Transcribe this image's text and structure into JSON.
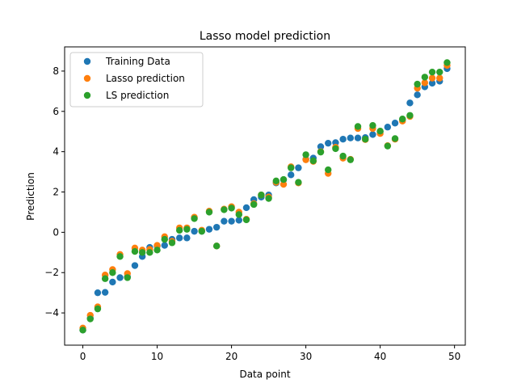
{
  "chart_data": {
    "type": "scatter",
    "title": "Lasso model prediction",
    "xlabel": "Data point",
    "ylabel": "Prediction",
    "xlim": [
      -2.45,
      51.45
    ],
    "ylim": [
      -5.6,
      9.2
    ],
    "xticks": [
      0,
      10,
      20,
      30,
      40,
      50
    ],
    "yticks": [
      -4,
      -2,
      0,
      2,
      4,
      6,
      8
    ],
    "xticklabels": [
      "0",
      "10",
      "20",
      "30",
      "40",
      "50"
    ],
    "yticklabels": [
      "−4",
      "−2",
      "0",
      "2",
      "4",
      "6",
      "8"
    ],
    "grid": false,
    "legend_position": "top-left",
    "x": [
      0,
      1,
      2,
      3,
      4,
      5,
      6,
      7,
      8,
      9,
      10,
      11,
      12,
      13,
      14,
      15,
      16,
      17,
      18,
      19,
      20,
      21,
      22,
      23,
      24,
      25,
      26,
      27,
      28,
      29,
      30,
      31,
      32,
      33,
      34,
      35,
      36,
      37,
      38,
      39,
      40,
      41,
      42,
      43,
      44,
      45,
      46,
      47,
      48,
      49
    ],
    "series": [
      {
        "name": "Training Data",
        "color": "#1f77b4",
        "values": [
          -4.85,
          -4.25,
          -3.0,
          -2.98,
          -2.47,
          -2.25,
          -2.2,
          -1.65,
          -1.2,
          -0.75,
          -0.68,
          -0.65,
          -0.35,
          -0.28,
          -0.28,
          0.05,
          0.05,
          0.15,
          0.25,
          0.55,
          0.55,
          0.6,
          1.22,
          1.62,
          1.75,
          1.85,
          2.45,
          2.6,
          2.85,
          3.2,
          3.62,
          3.68,
          4.25,
          4.42,
          4.45,
          4.62,
          4.68,
          4.68,
          4.7,
          4.85,
          5.0,
          5.22,
          5.42,
          5.6,
          6.42,
          6.82,
          7.22,
          7.4,
          7.5,
          8.12
        ]
      },
      {
        "name": "Lasso prediction",
        "color": "#ff7f0e",
        "values": [
          -4.75,
          -4.12,
          -3.7,
          -2.12,
          -1.85,
          -1.1,
          -2.05,
          -0.78,
          -0.88,
          -0.85,
          -0.65,
          -0.22,
          -0.45,
          0.22,
          0.22,
          0.75,
          0.1,
          1.05,
          -0.68,
          1.15,
          1.27,
          1.0,
          0.65,
          1.42,
          1.85,
          1.75,
          2.48,
          2.38,
          3.25,
          2.45,
          3.6,
          3.52,
          4.0,
          2.92,
          4.22,
          3.68,
          3.62,
          5.15,
          4.6,
          5.15,
          4.9,
          4.3,
          4.62,
          5.52,
          5.75,
          7.15,
          7.42,
          7.65,
          7.65,
          8.28
        ]
      },
      {
        "name": "LS prediction",
        "color": "#2ca02c",
        "values": [
          -4.85,
          -4.3,
          -3.8,
          -2.3,
          -2.0,
          -1.2,
          -2.25,
          -0.95,
          -1.0,
          -1.0,
          -0.88,
          -0.35,
          -0.52,
          0.1,
          0.15,
          0.68,
          0.05,
          1.0,
          -0.68,
          1.12,
          1.2,
          0.88,
          0.62,
          1.38,
          1.85,
          1.68,
          2.55,
          2.62,
          3.2,
          2.48,
          3.85,
          3.55,
          3.98,
          3.1,
          4.15,
          3.78,
          3.6,
          5.25,
          4.62,
          5.3,
          5.02,
          4.28,
          4.65,
          5.62,
          5.8,
          7.35,
          7.7,
          7.95,
          7.95,
          8.42
        ]
      }
    ]
  }
}
